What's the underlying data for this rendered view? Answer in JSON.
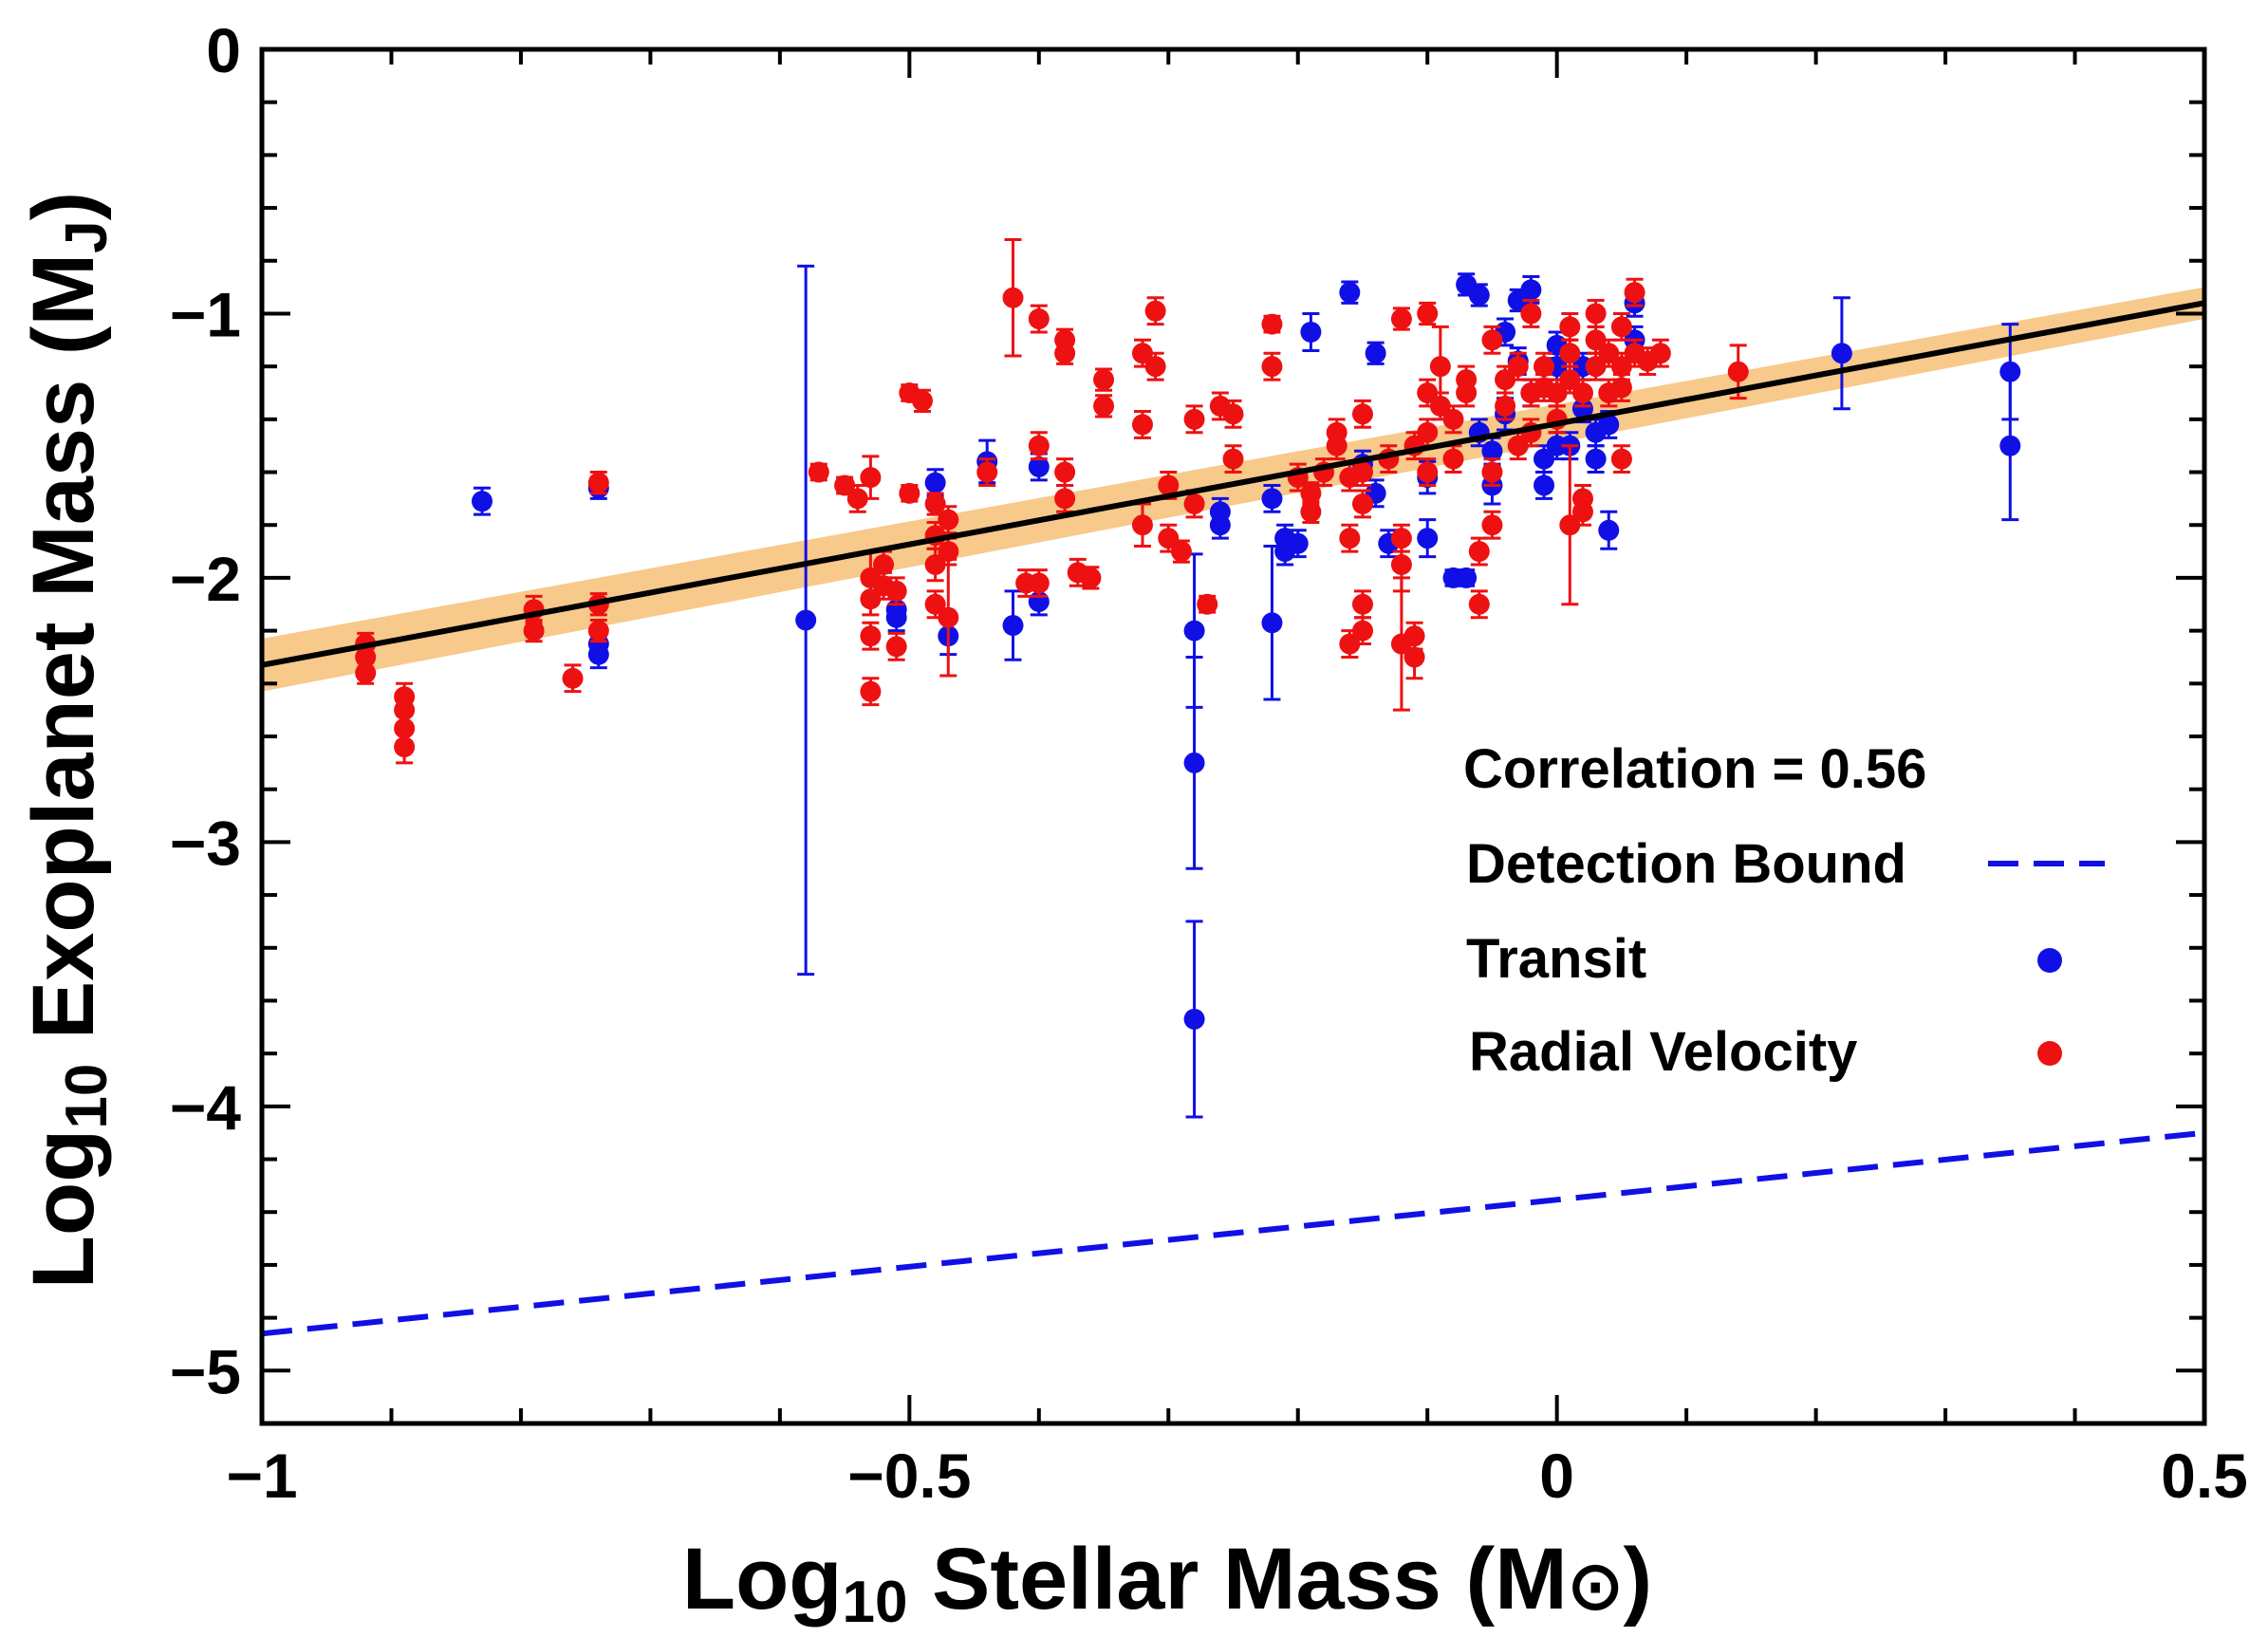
{
  "chart_data": {
    "type": "scatter",
    "xlabel": {
      "prefix": "Log",
      "sub": "10",
      "main": " Stellar Mass (M",
      "sym": "⊙",
      "suffix": ")"
    },
    "ylabel": {
      "prefix": "Log",
      "sub": "10",
      "main": " Exoplanet Mass (M",
      "sym": "J",
      "suffix": ")"
    },
    "xlim": [
      -1,
      0.5
    ],
    "ylim": [
      -5.2,
      0
    ],
    "xticks": [
      {
        "v": -1,
        "label": "−1"
      },
      {
        "v": -0.5,
        "label": "−0.5"
      },
      {
        "v": 0,
        "label": "0"
      },
      {
        "v": 0.5,
        "label": "0.5"
      }
    ],
    "yticks": [
      {
        "v": 0,
        "label": "0"
      },
      {
        "v": -1,
        "label": "−1"
      },
      {
        "v": -2,
        "label": "−2"
      },
      {
        "v": -3,
        "label": "−3"
      },
      {
        "v": -4,
        "label": "−4"
      },
      {
        "v": -5,
        "label": "−5"
      }
    ],
    "colors": {
      "transit": "#1010e6",
      "radial": "#ee1111",
      "fit": "#000000",
      "band": "#f7c98b",
      "bound": "#1010e6"
    },
    "fit_line": {
      "x": [
        -1,
        0.5
      ],
      "y": [
        -2.33,
        -0.96
      ]
    },
    "fit_band_halfwidth": [
      0.1,
      0.06
    ],
    "detection_bound": {
      "x": [
        -1,
        0.5
      ],
      "y": [
        -4.86,
        -4.1
      ]
    },
    "legend": {
      "correlation": "Correlation = 0.56",
      "bound": "Detection Bound",
      "transit": "Transit",
      "radial": "Radial Velocity"
    },
    "series": [
      {
        "name": "Transit",
        "points": [
          [
            -0.83,
            -1.71,
            0.05
          ],
          [
            -0.74,
            -1.66,
            0.04
          ],
          [
            -0.74,
            -2.25,
            0.05
          ],
          [
            -0.74,
            -2.29,
            0.05
          ],
          [
            -0.58,
            -2.16,
            1.34
          ],
          [
            -0.51,
            -2.12,
            0.05
          ],
          [
            -0.51,
            -2.15,
            0.05
          ],
          [
            -0.48,
            -1.64,
            0.05
          ],
          [
            -0.47,
            -2.22,
            0.07
          ],
          [
            -0.44,
            -1.56,
            0.08
          ],
          [
            -0.42,
            -2.18,
            0.13
          ],
          [
            -0.4,
            -1.58,
            0.05
          ],
          [
            -0.4,
            -2.09,
            0.05
          ],
          [
            -0.28,
            -2.2,
            0.29
          ],
          [
            -0.28,
            -2.7,
            0.4
          ],
          [
            -0.28,
            -3.67,
            0.37
          ],
          [
            -0.26,
            -1.75,
            0.05
          ],
          [
            -0.26,
            -1.8,
            0.05
          ],
          [
            -0.22,
            -1.7,
            0.05
          ],
          [
            -0.22,
            -2.17,
            0.29
          ],
          [
            -0.21,
            -1.85,
            0.05
          ],
          [
            -0.21,
            -1.9,
            0.05
          ],
          [
            -0.2,
            -1.87,
            0.05
          ],
          [
            -0.19,
            -1.07,
            0.07
          ],
          [
            -0.16,
            -0.92,
            0.04
          ],
          [
            -0.15,
            -1.57,
            0.05
          ],
          [
            -0.14,
            -1.15,
            0.04
          ],
          [
            -0.14,
            -1.68,
            0.05
          ],
          [
            -0.13,
            -1.87,
            0.05
          ],
          [
            -0.1,
            -1.85,
            0.07
          ],
          [
            -0.1,
            -1.62,
            0.06
          ],
          [
            -0.08,
            -2.0,
            0.03
          ],
          [
            -0.07,
            -2.0,
            0.03
          ],
          [
            -0.07,
            -0.89,
            0.04
          ],
          [
            -0.06,
            -0.93,
            0.04
          ],
          [
            -0.06,
            -1.45,
            0.05
          ],
          [
            -0.05,
            -1.65,
            0.07
          ],
          [
            -0.05,
            -1.52,
            0.05
          ],
          [
            -0.04,
            -1.07,
            0.05
          ],
          [
            -0.04,
            -1.38,
            0.06
          ],
          [
            -0.03,
            -0.95,
            0.04
          ],
          [
            -0.03,
            -1.18,
            0.05
          ],
          [
            -0.02,
            -1.3,
            0.05
          ],
          [
            -0.02,
            -0.91,
            0.05
          ],
          [
            -0.01,
            -1.65,
            0.05
          ],
          [
            -0.01,
            -1.55,
            0.05
          ],
          [
            0.0,
            -1.12,
            0.05
          ],
          [
            0.0,
            -1.5,
            0.05
          ],
          [
            0.01,
            -1.5,
            0.05
          ],
          [
            0.02,
            -1.36,
            0.05
          ],
          [
            0.02,
            -1.2,
            0.05
          ],
          [
            0.03,
            -1.55,
            0.05
          ],
          [
            0.03,
            -1.45,
            0.05
          ],
          [
            0.04,
            -1.42,
            0.05
          ],
          [
            0.04,
            -1.82,
            0.07
          ],
          [
            0.06,
            -1.1,
            0.05
          ],
          [
            0.06,
            -0.96,
            0.05
          ],
          [
            0.0,
            -1.2,
            0.05
          ],
          [
            0.22,
            -1.15,
            0.21
          ],
          [
            0.35,
            -1.22,
            0.18
          ],
          [
            0.35,
            -1.5,
            0.28
          ]
        ]
      },
      {
        "name": "Radial Velocity",
        "points": [
          [
            -0.92,
            -2.25,
            0.04
          ],
          [
            -0.92,
            -2.3,
            0.04
          ],
          [
            -0.92,
            -2.36,
            0.04
          ],
          [
            -0.89,
            -2.45,
            0.05
          ],
          [
            -0.89,
            -2.5,
            0.05
          ],
          [
            -0.89,
            -2.57,
            0.05
          ],
          [
            -0.89,
            -2.64,
            0.06
          ],
          [
            -0.79,
            -2.12,
            0.05
          ],
          [
            -0.79,
            -2.2,
            0.04
          ],
          [
            -0.76,
            -2.38,
            0.05
          ],
          [
            -0.74,
            -1.64,
            0.04
          ],
          [
            -0.74,
            -2.1,
            0.04
          ],
          [
            -0.74,
            -2.2,
            0.04
          ],
          [
            -0.57,
            -1.6,
            0.03
          ],
          [
            -0.55,
            -1.65,
            0.03
          ],
          [
            -0.54,
            -1.7,
            0.05
          ],
          [
            -0.53,
            -1.62,
            0.08
          ],
          [
            -0.53,
            -2.0,
            0.1
          ],
          [
            -0.53,
            -2.08,
            0.06
          ],
          [
            -0.53,
            -2.22,
            0.05
          ],
          [
            -0.53,
            -2.43,
            0.05
          ],
          [
            -0.52,
            -1.95,
            0.05
          ],
          [
            -0.52,
            -2.03,
            0.05
          ],
          [
            -0.51,
            -2.05,
            0.05
          ],
          [
            -0.51,
            -2.26,
            0.05
          ],
          [
            -0.5,
            -1.3,
            0.03
          ],
          [
            -0.5,
            -1.68,
            0.03
          ],
          [
            -0.49,
            -1.33,
            0.04
          ],
          [
            -0.48,
            -1.72,
            0.04
          ],
          [
            -0.48,
            -1.84,
            0.05
          ],
          [
            -0.48,
            -1.95,
            0.06
          ],
          [
            -0.48,
            -2.1,
            0.05
          ],
          [
            -0.47,
            -1.78,
            0.05
          ],
          [
            -0.47,
            -1.9,
            0.05
          ],
          [
            -0.47,
            -2.15,
            0.22
          ],
          [
            -0.44,
            -1.6,
            0.05
          ],
          [
            -0.42,
            -0.94,
            0.22
          ],
          [
            -0.41,
            -2.02,
            0.05
          ],
          [
            -0.4,
            -1.02,
            0.05
          ],
          [
            -0.4,
            -1.5,
            0.05
          ],
          [
            -0.4,
            -2.02,
            0.05
          ],
          [
            -0.38,
            -1.1,
            0.04
          ],
          [
            -0.38,
            -1.15,
            0.04
          ],
          [
            -0.38,
            -1.6,
            0.05
          ],
          [
            -0.38,
            -1.7,
            0.05
          ],
          [
            -0.37,
            -1.98,
            0.05
          ],
          [
            -0.36,
            -2.0,
            0.04
          ],
          [
            -0.35,
            -1.25,
            0.04
          ],
          [
            -0.35,
            -1.35,
            0.04
          ],
          [
            -0.32,
            -1.15,
            0.05
          ],
          [
            -0.32,
            -1.42,
            0.05
          ],
          [
            -0.32,
            -1.8,
            0.08
          ],
          [
            -0.31,
            -0.99,
            0.05
          ],
          [
            -0.31,
            -1.2,
            0.05
          ],
          [
            -0.3,
            -1.65,
            0.05
          ],
          [
            -0.3,
            -1.85,
            0.05
          ],
          [
            -0.29,
            -1.9,
            0.04
          ],
          [
            -0.28,
            -1.4,
            0.05
          ],
          [
            -0.28,
            -1.72,
            0.05
          ],
          [
            -0.27,
            -2.1,
            0.03
          ],
          [
            -0.26,
            -1.35,
            0.05
          ],
          [
            -0.25,
            -1.55,
            0.05
          ],
          [
            -0.25,
            -1.38,
            0.05
          ],
          [
            -0.22,
            -1.04,
            0.03
          ],
          [
            -0.22,
            -1.2,
            0.05
          ],
          [
            -0.2,
            -1.62,
            0.05
          ],
          [
            -0.19,
            -1.68,
            0.04
          ],
          [
            -0.19,
            -1.75,
            0.04
          ],
          [
            -0.18,
            -1.6,
            0.05
          ],
          [
            -0.17,
            -1.45,
            0.05
          ],
          [
            -0.17,
            -1.5,
            0.05
          ],
          [
            -0.16,
            -1.62,
            0.05
          ],
          [
            -0.16,
            -1.85,
            0.05
          ],
          [
            -0.16,
            -2.25,
            0.05
          ],
          [
            -0.15,
            -1.6,
            0.05
          ],
          [
            -0.15,
            -1.72,
            0.05
          ],
          [
            -0.15,
            -2.2,
            0.05
          ],
          [
            -0.15,
            -2.1,
            0.05
          ],
          [
            -0.15,
            -1.38,
            0.05
          ],
          [
            -0.13,
            -1.55,
            0.05
          ],
          [
            -0.12,
            -1.02,
            0.04
          ],
          [
            -0.12,
            -1.85,
            0.05
          ],
          [
            -0.12,
            -1.95,
            0.1
          ],
          [
            -0.12,
            -2.25,
            0.25
          ],
          [
            -0.11,
            -1.5,
            0.05
          ],
          [
            -0.11,
            -2.22,
            0.05
          ],
          [
            -0.11,
            -2.3,
            0.08
          ],
          [
            -0.1,
            -1.0,
            0.04
          ],
          [
            -0.1,
            -1.3,
            0.05
          ],
          [
            -0.1,
            -1.45,
            0.05
          ],
          [
            -0.1,
            -1.6,
            0.05
          ],
          [
            -0.09,
            -1.2,
            0.15
          ],
          [
            -0.09,
            -1.35,
            0.05
          ],
          [
            -0.08,
            -1.4,
            0.05
          ],
          [
            -0.08,
            -1.55,
            0.05
          ],
          [
            -0.07,
            -1.25,
            0.05
          ],
          [
            -0.07,
            -1.3,
            0.05
          ],
          [
            -0.06,
            -1.9,
            0.05
          ],
          [
            -0.06,
            -2.1,
            0.05
          ],
          [
            -0.05,
            -1.1,
            0.05
          ],
          [
            -0.05,
            -1.6,
            0.05
          ],
          [
            -0.05,
            -1.8,
            0.05
          ],
          [
            -0.04,
            -1.25,
            0.05
          ],
          [
            -0.04,
            -1.35,
            0.05
          ],
          [
            -0.03,
            -1.2,
            0.05
          ],
          [
            -0.03,
            -1.5,
            0.05
          ],
          [
            -0.02,
            -1.0,
            0.05
          ],
          [
            -0.02,
            -1.3,
            0.05
          ],
          [
            -0.02,
            -1.45,
            0.05
          ],
          [
            -0.01,
            -1.2,
            0.05
          ],
          [
            -0.01,
            -1.28,
            0.05
          ],
          [
            0.0,
            -1.3,
            0.05
          ],
          [
            0.0,
            -1.4,
            0.05
          ],
          [
            0.01,
            -1.05,
            0.05
          ],
          [
            0.01,
            -1.15,
            0.05
          ],
          [
            0.01,
            -1.25,
            0.05
          ],
          [
            0.01,
            -1.8,
            0.3
          ],
          [
            0.02,
            -1.7,
            0.05
          ],
          [
            0.02,
            -1.75,
            0.05
          ],
          [
            0.02,
            -1.3,
            0.05
          ],
          [
            0.03,
            -1.0,
            0.05
          ],
          [
            0.03,
            -1.1,
            0.05
          ],
          [
            0.03,
            -1.2,
            0.05
          ],
          [
            0.04,
            -1.15,
            0.05
          ],
          [
            0.04,
            -1.3,
            0.05
          ],
          [
            0.05,
            -1.05,
            0.05
          ],
          [
            0.05,
            -1.2,
            0.05
          ],
          [
            0.05,
            -1.28,
            0.05
          ],
          [
            0.05,
            -1.55,
            0.05
          ],
          [
            0.06,
            -0.92,
            0.05
          ],
          [
            0.06,
            -1.15,
            0.05
          ],
          [
            0.07,
            -1.18,
            0.05
          ],
          [
            0.08,
            -1.15,
            0.05
          ],
          [
            0.14,
            -1.22,
            0.1
          ]
        ]
      }
    ]
  }
}
